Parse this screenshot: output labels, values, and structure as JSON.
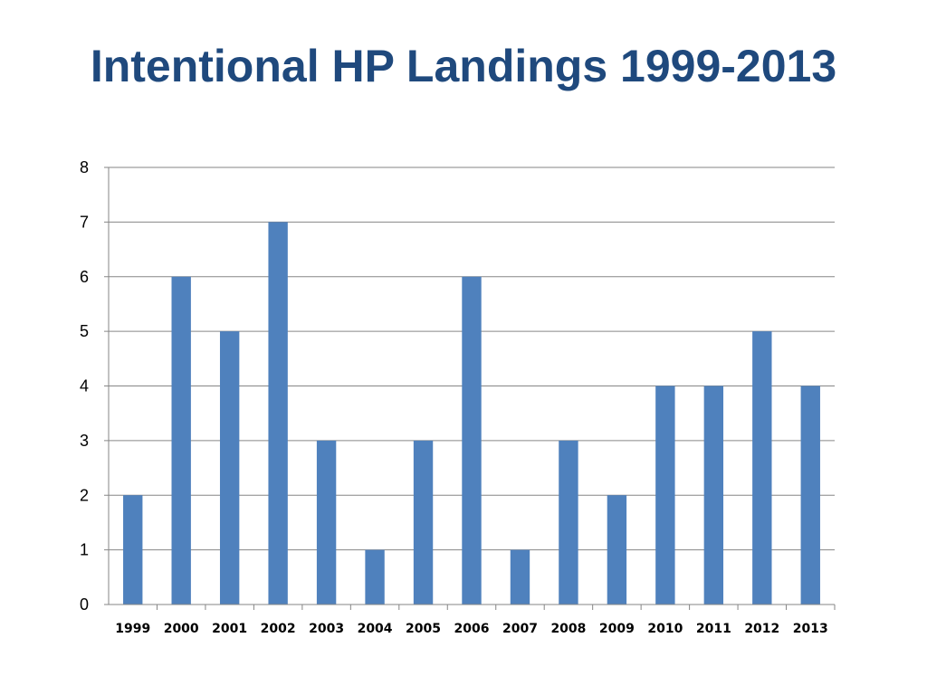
{
  "slide": {
    "title": "Intentional HP Landings 1999-2013"
  },
  "colors": {
    "title": "#1f497d",
    "bar": "#4f81bd",
    "gridline": "#868686",
    "axis": "#868686"
  },
  "chart_data": {
    "type": "bar",
    "title": "Intentional HP Landings 1999-2013",
    "xlabel": "",
    "ylabel": "",
    "categories": [
      "1999",
      "2000",
      "2001",
      "2002",
      "2003",
      "2004",
      "2005",
      "2006",
      "2007",
      "2008",
      "2009",
      "2010",
      "2011",
      "2012",
      "2013"
    ],
    "values": [
      2,
      6,
      5,
      7,
      3,
      1,
      3,
      6,
      1,
      3,
      2,
      4,
      4,
      5,
      4
    ],
    "ylim": [
      0,
      8
    ],
    "yticks": [
      0,
      1,
      2,
      3,
      4,
      5,
      6,
      7,
      8
    ],
    "grid": true,
    "legend": "none"
  }
}
